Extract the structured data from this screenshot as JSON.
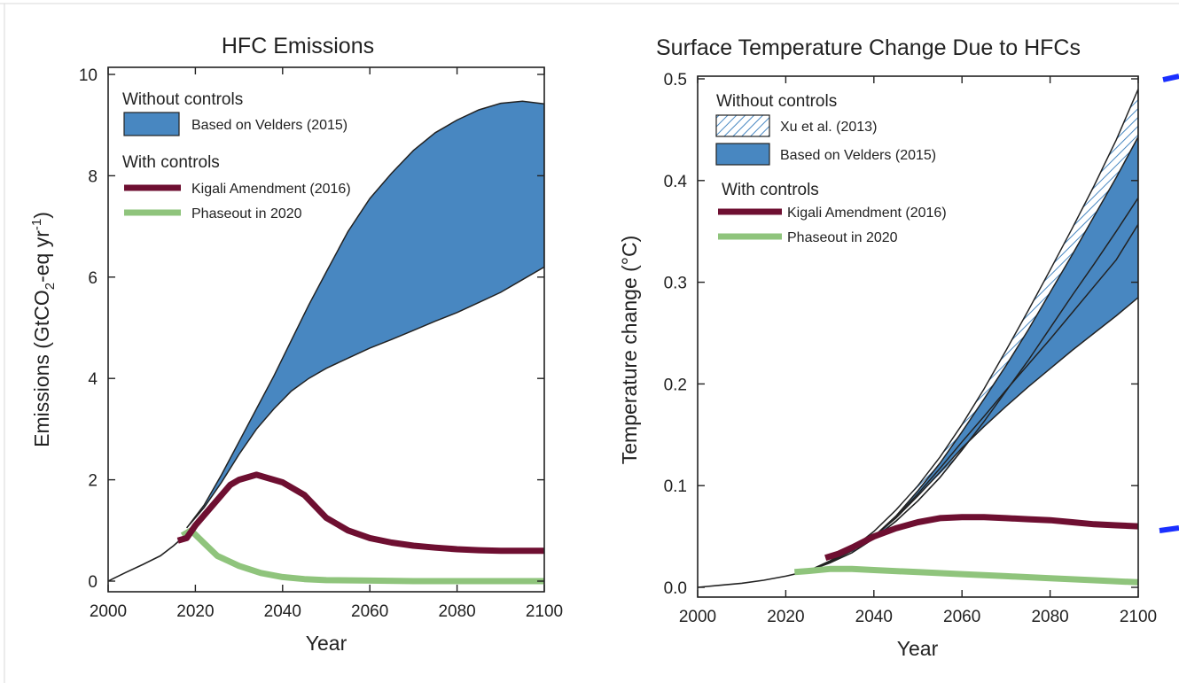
{
  "chart_data": [
    {
      "type": "area",
      "title": "HFC Emissions",
      "xlabel": "Year",
      "ylabel": "Emissions (GtCO2-eq yr-1)",
      "ylabel_parts": {
        "pre": "Emissions (GtCO",
        "sub": "2",
        "mid": "-eq yr",
        "sup": "-1",
        "post": ")"
      },
      "xlim": [
        2000,
        2100
      ],
      "ylim": [
        0,
        10
      ],
      "x_ticks": [
        2000,
        2020,
        2040,
        2060,
        2080,
        2100
      ],
      "y_ticks": [
        0,
        2,
        4,
        6,
        8,
        10
      ],
      "legend": {
        "placement": "top-left",
        "groups": [
          {
            "heading": "Without controls",
            "items": [
              {
                "key": "velders",
                "label": "Based on Velders (2015)"
              }
            ]
          },
          {
            "heading": "With controls",
            "items": [
              {
                "key": "kigali",
                "label": "Kigali Amendment (2016)"
              },
              {
                "key": "phaseout",
                "label": "Phaseout in 2020"
              }
            ]
          }
        ]
      },
      "colors": {
        "band": "#4887c1",
        "kigali": "#6e0f31",
        "phaseout": "#8fc47c",
        "history": "#222222"
      },
      "series": [
        {
          "key": "history",
          "style": "thin-line",
          "x": [
            2000,
            2004,
            2008,
            2012,
            2015,
            2017
          ],
          "y": [
            0.0,
            0.17,
            0.33,
            0.5,
            0.7,
            0.85
          ]
        },
        {
          "key": "velders",
          "style": "band",
          "x": [
            2018,
            2022,
            2026,
            2030,
            2034,
            2038,
            2042,
            2046,
            2050,
            2055,
            2060,
            2065,
            2070,
            2075,
            2080,
            2085,
            2090,
            2095,
            2100
          ],
          "lower": [
            1.05,
            1.45,
            1.95,
            2.5,
            3.0,
            3.4,
            3.75,
            4.0,
            4.2,
            4.4,
            4.6,
            4.77,
            4.95,
            5.13,
            5.3,
            5.5,
            5.7,
            5.95,
            6.2
          ],
          "upper": [
            1.05,
            1.5,
            2.1,
            2.75,
            3.4,
            4.05,
            4.75,
            5.45,
            6.1,
            6.9,
            7.55,
            8.05,
            8.5,
            8.85,
            9.1,
            9.3,
            9.43,
            9.47,
            9.42
          ]
        },
        {
          "key": "kigali",
          "style": "thick-line",
          "x": [
            2016,
            2018,
            2020,
            2024,
            2028,
            2030,
            2034,
            2036,
            2040,
            2045,
            2050,
            2055,
            2060,
            2065,
            2070,
            2075,
            2080,
            2085,
            2090,
            2095,
            2100
          ],
          "y": [
            0.8,
            0.85,
            1.1,
            1.5,
            1.9,
            2.0,
            2.1,
            2.05,
            1.95,
            1.7,
            1.25,
            1.0,
            0.85,
            0.76,
            0.7,
            0.66,
            0.63,
            0.61,
            0.6,
            0.6,
            0.6
          ]
        },
        {
          "key": "phaseout",
          "style": "thick-line",
          "x": [
            2017,
            2019,
            2022,
            2025,
            2030,
            2035,
            2040,
            2045,
            2050,
            2060,
            2070,
            2080,
            2090,
            2100
          ],
          "y": [
            0.9,
            1.0,
            0.75,
            0.5,
            0.3,
            0.16,
            0.08,
            0.04,
            0.02,
            0.01,
            0.0,
            0.0,
            0.0,
            0.0
          ]
        }
      ]
    },
    {
      "type": "area",
      "title": "Surface Temperature Change Due to HFCs",
      "xlabel": "Year",
      "ylabel": "Temperature change (°C)",
      "xlim": [
        2000,
        2100
      ],
      "ylim": [
        0,
        0.5
      ],
      "x_ticks": [
        2000,
        2020,
        2040,
        2060,
        2080,
        2100
      ],
      "y_ticks": [
        "0.0",
        "0.1",
        "0.2",
        "0.3",
        "0.4",
        "0.5"
      ],
      "legend": {
        "placement": "top-left",
        "groups": [
          {
            "heading": "Without controls",
            "items": [
              {
                "key": "xu",
                "label": "Xu et al. (2013)"
              },
              {
                "key": "velders",
                "label": "Based on Velders (2015)"
              }
            ]
          },
          {
            "heading": "With controls",
            "items": [
              {
                "key": "kigali",
                "label": "Kigali Amendment (2016)"
              },
              {
                "key": "phaseout",
                "label": "Phaseout in 2020"
              }
            ]
          }
        ]
      },
      "colors": {
        "band": "#4887c1",
        "hatch": "#4887c1",
        "kigali": "#6e0f31",
        "phaseout": "#8fc47c",
        "history": "#222222",
        "edge_mark": "#1a2fff"
      },
      "series": [
        {
          "key": "history",
          "style": "thin-line",
          "x": [
            2000,
            2005,
            2010,
            2015,
            2020,
            2025
          ],
          "y": [
            0.0,
            0.002,
            0.004,
            0.007,
            0.011,
            0.016
          ]
        },
        {
          "key": "xu",
          "style": "hatched-band",
          "x": [
            2025,
            2030,
            2035,
            2040,
            2045,
            2050,
            2055,
            2060,
            2065,
            2070,
            2075,
            2080,
            2085,
            2090,
            2095,
            2100
          ],
          "lower": [
            0.016,
            0.024,
            0.034,
            0.048,
            0.065,
            0.085,
            0.108,
            0.135,
            0.163,
            0.193,
            0.223,
            0.255,
            0.287,
            0.318,
            0.35,
            0.383
          ],
          "upper": [
            0.016,
            0.026,
            0.038,
            0.055,
            0.076,
            0.1,
            0.128,
            0.16,
            0.195,
            0.233,
            0.272,
            0.312,
            0.353,
            0.395,
            0.44,
            0.49
          ]
        },
        {
          "key": "velders",
          "style": "band",
          "x": [
            2025,
            2030,
            2035,
            2040,
            2045,
            2050,
            2055,
            2060,
            2065,
            2070,
            2075,
            2080,
            2085,
            2090,
            2095,
            2100
          ],
          "lower": [
            0.016,
            0.025,
            0.036,
            0.05,
            0.068,
            0.09,
            0.113,
            0.137,
            0.158,
            0.178,
            0.197,
            0.215,
            0.233,
            0.25,
            0.267,
            0.285
          ],
          "upper": [
            0.016,
            0.025,
            0.036,
            0.05,
            0.07,
            0.095,
            0.122,
            0.153,
            0.185,
            0.218,
            0.253,
            0.29,
            0.327,
            0.365,
            0.403,
            0.443
          ],
          "middle": [
            0.016,
            0.025,
            0.036,
            0.05,
            0.069,
            0.092,
            0.117,
            0.143,
            0.168,
            0.194,
            0.219,
            0.244,
            0.27,
            0.296,
            0.322,
            0.357
          ]
        },
        {
          "key": "kigali",
          "style": "thick-line",
          "x": [
            2029,
            2032,
            2035,
            2040,
            2045,
            2050,
            2055,
            2060,
            2065,
            2070,
            2075,
            2080,
            2085,
            2090,
            2095,
            2100
          ],
          "y": [
            0.029,
            0.033,
            0.039,
            0.05,
            0.058,
            0.064,
            0.068,
            0.069,
            0.069,
            0.068,
            0.067,
            0.066,
            0.064,
            0.062,
            0.061,
            0.06
          ]
        },
        {
          "key": "phaseout",
          "style": "thick-line",
          "x": [
            2022,
            2025,
            2030,
            2035,
            2040,
            2050,
            2060,
            2070,
            2080,
            2090,
            2100
          ],
          "y": [
            0.015,
            0.016,
            0.018,
            0.018,
            0.017,
            0.015,
            0.013,
            0.011,
            0.009,
            0.007,
            0.005
          ]
        }
      ]
    }
  ]
}
